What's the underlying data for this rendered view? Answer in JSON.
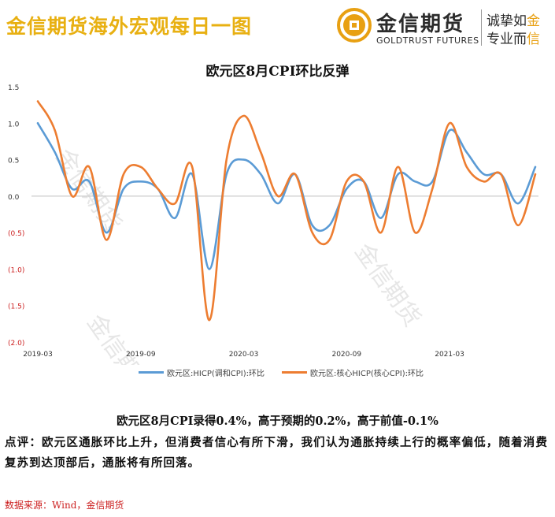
{
  "banner": {
    "title": "金信期货海外宏观每日一图"
  },
  "logo": {
    "name": "金信期货",
    "english": "GOLDTRUST FUTURES",
    "slogan_line1_prefix": "诚挚如",
    "slogan_line1_highlight": "金",
    "slogan_line2_prefix": "专业而",
    "slogan_line2_highlight": "信",
    "accent_color": "#e8a012"
  },
  "chart_title": "欧元区8月CPI环比反弹",
  "chart_data": {
    "type": "line",
    "x": [
      "2019-03",
      "2019-04",
      "2019-05",
      "2019-06",
      "2019-07",
      "2019-08",
      "2019-09",
      "2019-10",
      "2019-11",
      "2019-12",
      "2020-01",
      "2020-02",
      "2020-03",
      "2020-04",
      "2020-05",
      "2020-06",
      "2020-07",
      "2020-08",
      "2020-09",
      "2020-10",
      "2020-11",
      "2020-12",
      "2021-01",
      "2021-02",
      "2021-03",
      "2021-04",
      "2021-05",
      "2021-06",
      "2021-07",
      "2021-08"
    ],
    "x_tick_labels": [
      "2019-03",
      "2019-09",
      "2020-03",
      "2020-09",
      "2021-03"
    ],
    "y_ticks": [
      1.5,
      1.0,
      0.5,
      0.0,
      -0.5,
      -1.0,
      -1.5,
      -2.0
    ],
    "y_tick_labels": [
      "1.5",
      "1.0",
      "0.5",
      "0.0",
      "(0.5)",
      "(1.0)",
      "(1.5)",
      "(2.0)"
    ],
    "ylim": [
      -2.0,
      1.5
    ],
    "grid": false,
    "legend_position": "bottom",
    "series": [
      {
        "name": "欧元区:HICP(调和CPI):环比",
        "color": "#5b9bd5",
        "values": [
          1.0,
          0.6,
          0.1,
          0.2,
          -0.5,
          0.1,
          0.2,
          0.1,
          -0.3,
          0.3,
          -1.0,
          0.3,
          0.5,
          0.3,
          -0.1,
          0.3,
          -0.4,
          -0.4,
          0.1,
          0.2,
          -0.3,
          0.3,
          0.2,
          0.2,
          0.9,
          0.6,
          0.3,
          0.3,
          -0.1,
          0.4
        ]
      },
      {
        "name": "欧元区:核心HICP(核心CPI):环比",
        "color": "#ed7d31",
        "values": [
          1.3,
          0.9,
          0.0,
          0.4,
          -0.6,
          0.3,
          0.4,
          0.1,
          -0.1,
          0.4,
          -1.7,
          0.5,
          1.1,
          0.6,
          0.0,
          0.3,
          -0.5,
          -0.6,
          0.2,
          0.2,
          -0.5,
          0.4,
          -0.5,
          0.1,
          1.0,
          0.4,
          0.2,
          0.3,
          -0.4,
          0.3
        ]
      }
    ]
  },
  "notes": {
    "line1": "欧元区8月CPI录得0.4%，高于预期的0.2%，高于前值-0.1%",
    "line2": "点评：欧元区通胀环比上升，但消费者信心有所下滑，我们认为通胀持续上行的概率偏低，随着消费复苏到达顶部后，通胀将有所回落。"
  },
  "source": "数据来源：Wind，金信期货",
  "colors": {
    "banner": "#e8b012",
    "negative_tick": "#cc1f1f",
    "source": "#cc1f1f"
  }
}
